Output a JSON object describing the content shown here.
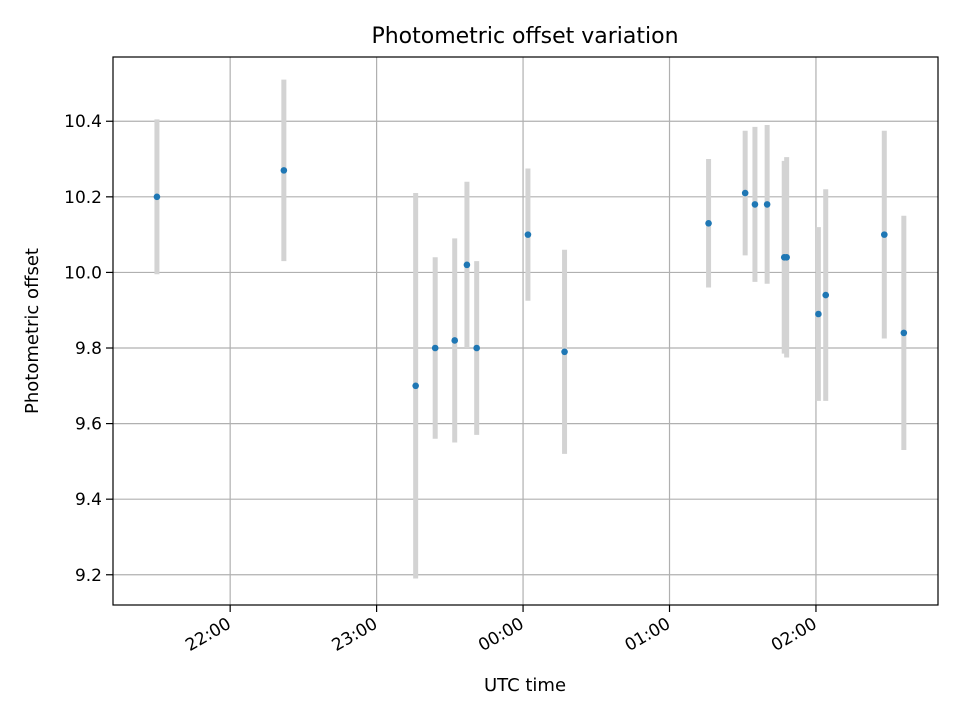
{
  "chart_data": {
    "type": "scatter",
    "title": "Photometric offset variation",
    "xlabel": "UTC time",
    "ylabel": "Photometric offset",
    "x_axis_type": "time",
    "xlim": [
      "21:12",
      "02:50"
    ],
    "ylim": [
      9.12,
      10.57
    ],
    "x_ticks": [
      "22:00",
      "23:00",
      "00:00",
      "01:00",
      "02:00"
    ],
    "y_ticks": [
      9.2,
      9.4,
      9.6,
      9.8,
      10.0,
      10.2,
      10.4
    ],
    "grid": true,
    "marker_color": "#1f77b4",
    "errorbar_color": "#d3d3d3",
    "series": [
      {
        "points": [
          {
            "time": "21:30",
            "y": 10.2,
            "err": 0.205
          },
          {
            "time": "22:22",
            "y": 10.27,
            "err": 0.24
          },
          {
            "time": "23:16",
            "y": 9.7,
            "err": 0.51
          },
          {
            "time": "23:24",
            "y": 9.8,
            "err": 0.24
          },
          {
            "time": "23:32",
            "y": 9.82,
            "err": 0.27
          },
          {
            "time": "23:37",
            "y": 10.02,
            "err": 0.22
          },
          {
            "time": "23:41",
            "y": 9.8,
            "err": 0.23
          },
          {
            "time": "00:02",
            "y": 10.1,
            "err": 0.175
          },
          {
            "time": "00:17",
            "y": 9.79,
            "err": 0.27
          },
          {
            "time": "01:16",
            "y": 10.13,
            "err": 0.17
          },
          {
            "time": "01:31",
            "y": 10.21,
            "err": 0.165
          },
          {
            "time": "01:35",
            "y": 10.18,
            "err": 0.205
          },
          {
            "time": "01:40",
            "y": 10.18,
            "err": 0.21
          },
          {
            "time": "01:47",
            "y": 10.04,
            "err": 0.255
          },
          {
            "time": "01:48",
            "y": 10.04,
            "err": 0.265
          },
          {
            "time": "02:01",
            "y": 9.89,
            "err": 0.23
          },
          {
            "time": "02:04",
            "y": 9.94,
            "err": 0.28
          },
          {
            "time": "02:28",
            "y": 10.1,
            "err": 0.275
          },
          {
            "time": "02:36",
            "y": 9.84,
            "err": 0.31
          }
        ]
      }
    ]
  }
}
